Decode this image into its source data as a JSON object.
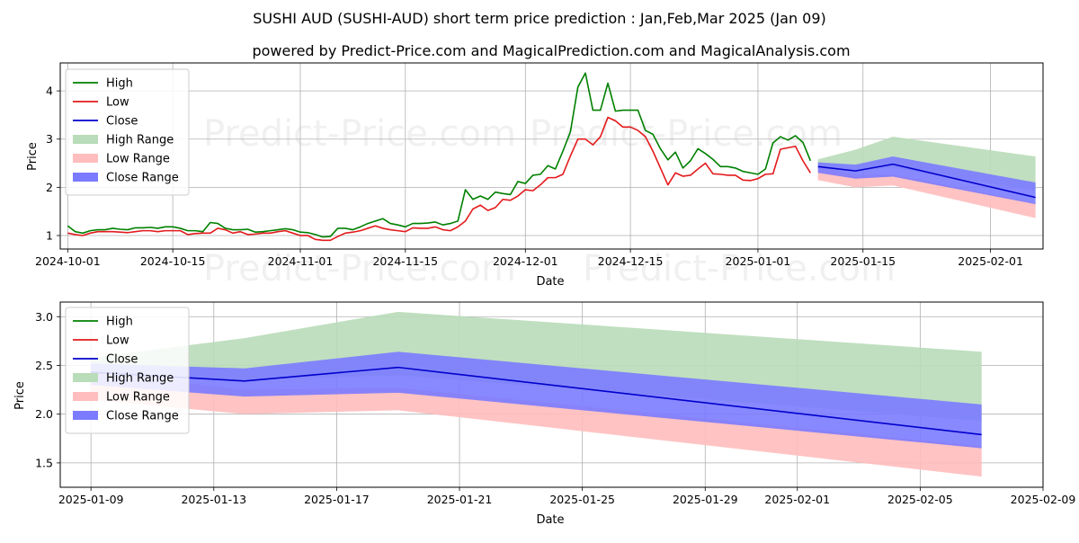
{
  "title_line1": "SUSHI AUD (SUSHI-AUD) short term price prediction : Jan,Feb,Mar 2025 (Jan 09)",
  "title_line2": "powered by Predict-Price.com and MagicalPrediction.com and MagicalAnalysis.com",
  "watermark": "Predict-Price.com",
  "colors": {
    "high": "#008000",
    "low": "#e31a1c",
    "close": "#0000cc",
    "high_range": "#b9dcb9",
    "low_range": "#ffbdbd",
    "close_range": "#7b7bff"
  },
  "legend": [
    "High",
    "Low",
    "Close",
    "High Range",
    "Low Range",
    "Close Range"
  ],
  "chart_data": [
    {
      "type": "line",
      "name": "historical",
      "xlabel": "Date",
      "ylabel": "Price",
      "x_start": "2024-09-30",
      "x_end": "2025-02-08",
      "ylim": [
        0.72,
        4.58
      ],
      "yticks": [
        1,
        2,
        3,
        4
      ],
      "xticks": [
        "2024-10-01",
        "2024-10-15",
        "2024-11-01",
        "2024-11-15",
        "2024-12-01",
        "2024-12-15",
        "2025-01-01",
        "2025-01-15",
        "2025-02-01"
      ],
      "hist_start": "2024-10-01",
      "high": [
        1.2,
        1.08,
        1.05,
        1.1,
        1.12,
        1.12,
        1.15,
        1.13,
        1.12,
        1.16,
        1.16,
        1.17,
        1.15,
        1.18,
        1.18,
        1.15,
        1.1,
        1.1,
        1.08,
        1.27,
        1.25,
        1.15,
        1.12,
        1.12,
        1.13,
        1.07,
        1.08,
        1.1,
        1.12,
        1.14,
        1.12,
        1.07,
        1.06,
        1.02,
        0.97,
        0.98,
        1.15,
        1.15,
        1.12,
        1.18,
        1.25,
        1.3,
        1.35,
        1.25,
        1.22,
        1.18,
        1.25,
        1.25,
        1.26,
        1.28,
        1.22,
        1.25,
        1.3,
        1.95,
        1.75,
        1.82,
        1.75,
        1.9,
        1.87,
        1.85,
        2.12,
        2.08,
        2.25,
        2.27,
        2.45,
        2.38,
        2.75,
        3.15,
        4.08,
        4.37,
        3.6,
        3.6,
        4.16,
        3.58,
        3.6,
        3.6,
        3.6,
        3.18,
        3.1,
        2.8,
        2.57,
        2.73,
        2.4,
        2.55,
        2.8,
        2.7,
        2.58,
        2.43,
        2.43,
        2.4,
        2.33,
        2.3,
        2.27,
        2.38,
        2.92,
        3.05,
        2.98,
        3.07,
        2.93,
        2.55
      ],
      "low": [
        1.05,
        1.02,
        1.0,
        1.05,
        1.08,
        1.08,
        1.08,
        1.07,
        1.06,
        1.08,
        1.1,
        1.1,
        1.08,
        1.1,
        1.1,
        1.1,
        1.02,
        1.04,
        1.05,
        1.05,
        1.15,
        1.12,
        1.05,
        1.08,
        1.02,
        1.03,
        1.05,
        1.05,
        1.08,
        1.1,
        1.05,
        1.0,
        1.0,
        0.92,
        0.9,
        0.9,
        0.98,
        1.05,
        1.07,
        1.1,
        1.15,
        1.2,
        1.15,
        1.12,
        1.1,
        1.08,
        1.16,
        1.15,
        1.15,
        1.18,
        1.12,
        1.1,
        1.18,
        1.3,
        1.55,
        1.63,
        1.52,
        1.58,
        1.75,
        1.73,
        1.82,
        1.95,
        1.93,
        2.05,
        2.2,
        2.2,
        2.27,
        2.65,
        3.0,
        3.0,
        2.88,
        3.05,
        3.45,
        3.38,
        3.25,
        3.25,
        3.18,
        3.05,
        2.75,
        2.4,
        2.05,
        2.3,
        2.23,
        2.25,
        2.38,
        2.5,
        2.28,
        2.27,
        2.25,
        2.25,
        2.15,
        2.14,
        2.18,
        2.27,
        2.28,
        2.79,
        2.82,
        2.85,
        2.55,
        2.3
      ]
    },
    {
      "type": "area",
      "name": "prediction_detail",
      "xlabel": "Date",
      "ylabel": "Price",
      "x_start": "2025-01-08",
      "x_end": "2025-02-09",
      "ylim": [
        1.25,
        3.15
      ],
      "yticks": [
        1.5,
        2.0,
        2.5,
        3.0
      ],
      "ytick_labels": [
        "1.5",
        "2.0",
        "2.5",
        "3.0"
      ],
      "xticks": [
        "2025-01-09",
        "2025-01-13",
        "2025-01-17",
        "2025-01-21",
        "2025-01-25",
        "2025-01-29",
        "2025-02-01",
        "2025-02-05",
        "2025-02-09"
      ],
      "dates": [
        "2025-01-09",
        "2025-01-14",
        "2025-01-19",
        "2025-02-07"
      ],
      "close": [
        2.43,
        2.34,
        2.48,
        1.79
      ],
      "high_range": [
        [
          2.38,
          2.58
        ],
        [
          2.35,
          2.78
        ],
        [
          2.4,
          3.05
        ],
        [
          1.93,
          2.64
        ]
      ],
      "low_range": [
        [
          2.15,
          2.43
        ],
        [
          2.0,
          2.25
        ],
        [
          2.04,
          2.27
        ],
        [
          1.36,
          1.67
        ]
      ],
      "close_range": [
        [
          2.3,
          2.52
        ],
        [
          2.18,
          2.47
        ],
        [
          2.22,
          2.64
        ],
        [
          1.65,
          2.1
        ]
      ]
    }
  ]
}
